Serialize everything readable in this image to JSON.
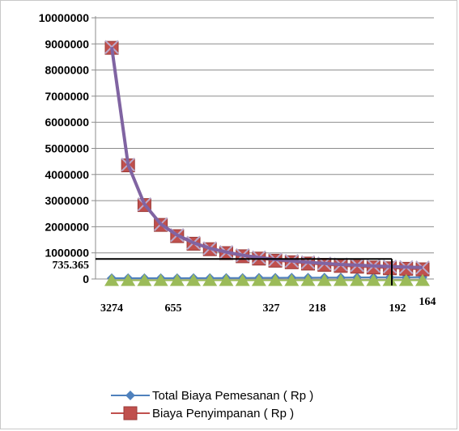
{
  "chart_data": {
    "type": "line",
    "title": "",
    "xlabel": "",
    "ylabel": "",
    "ylim": [
      0,
      10000000
    ],
    "yticks": [
      "10000000",
      "9000000",
      "8000000",
      "7000000",
      "6000000",
      "5000000",
      "4000000",
      "3000000",
      "2000000",
      "1000000",
      "0"
    ],
    "x_tick_labels": [
      "3274",
      "655",
      "327",
      "218",
      "192",
      "164"
    ],
    "annotation": {
      "text": "735.365",
      "value": 735365,
      "vertical_marker_category": "192"
    },
    "grid": "horizontal",
    "legend_position": "bottom",
    "series": [
      {
        "name": "Total Biaya Pemesanan ( Rp )",
        "color": "#4F81BD",
        "marker": "diamond",
        "values": [
          30000,
          30000,
          30000,
          30000,
          30000,
          35000,
          35000,
          40000,
          40000,
          45000,
          45000,
          50000,
          50000,
          55000,
          55000,
          60000,
          60000,
          65000,
          65000,
          70000
        ]
      },
      {
        "name": "Biaya Penyimpanan ( Rp )",
        "color": "#C0504D",
        "marker": "square",
        "values": [
          8850000,
          4350000,
          2830000,
          2070000,
          1640000,
          1350000,
          1140000,
          990000,
          870000,
          780000,
          700000,
          640000,
          590000,
          540000,
          500000,
          470000,
          440000,
          410000,
          390000,
          370000
        ]
      },
      {
        "color": "#9BBB59",
        "marker": "triangle",
        "values": [
          -50000,
          -50000,
          -50000,
          -50000,
          -50000,
          -50000,
          -50000,
          -50000,
          -50000,
          -50000,
          -50000,
          -50000,
          -50000,
          -50000,
          -50000,
          -50000,
          -50000,
          -50000,
          -50000,
          -50000
        ]
      },
      {
        "color": "#8064A2",
        "marker": "x",
        "values": [
          8880000,
          4380000,
          2860000,
          2100000,
          1680000,
          1385000,
          1175000,
          1030000,
          910000,
          825000,
          745000,
          690000,
          640000,
          595000,
          555000,
          530000,
          500000,
          475000,
          455000,
          440000
        ]
      }
    ]
  }
}
